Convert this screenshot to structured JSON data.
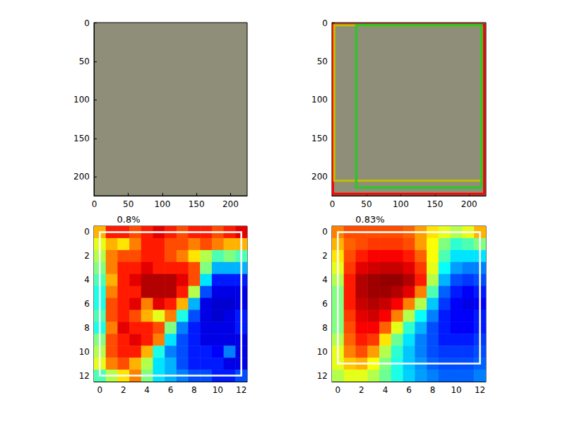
{
  "chart_data": [
    {
      "type": "image",
      "xlim": [
        -0.5,
        224.5
      ],
      "ylim": [
        224.5,
        -0.5
      ],
      "xticks": [
        0,
        50,
        100,
        150,
        200
      ],
      "yticks": [
        0,
        50,
        100,
        150,
        200
      ]
    },
    {
      "type": "image",
      "xlim": [
        -0.5,
        224.5
      ],
      "ylim": [
        224.5,
        -0.5
      ],
      "xticks": [
        0,
        50,
        100,
        150,
        200
      ],
      "yticks": [
        0,
        50,
        100,
        150,
        200
      ],
      "boxes": [
        {
          "color": "#ff0000",
          "coords": [
            1,
            2,
            222,
            222
          ]
        },
        {
          "color": "#bfbf00",
          "coords": [
            3,
            3,
            218,
            205
          ]
        },
        {
          "color": "#22cc22",
          "coords": [
            35,
            3,
            218,
            214
          ]
        }
      ]
    },
    {
      "type": "heatmap",
      "title": "0.8%",
      "xlim": [
        -0.5,
        12.5
      ],
      "ylim": [
        12.5,
        -0.5
      ],
      "xticks": [
        0,
        2,
        4,
        6,
        8,
        10,
        12
      ],
      "yticks": [
        0,
        2,
        4,
        6,
        8,
        10,
        12
      ],
      "zlim": [
        0,
        1
      ],
      "cells": [
        [
          0.7,
          0.85,
          0.85,
          0.8,
          0.85,
          0.9,
          0.85,
          0.8,
          0.85,
          0.85,
          0.8,
          0.85,
          0.9
        ],
        [
          0.6,
          0.7,
          0.65,
          0.75,
          0.85,
          0.85,
          0.8,
          0.8,
          0.75,
          0.8,
          0.75,
          0.7,
          0.7
        ],
        [
          0.55,
          0.75,
          0.8,
          0.8,
          0.85,
          0.85,
          0.8,
          0.75,
          0.65,
          0.55,
          0.45,
          0.5,
          0.45
        ],
        [
          0.5,
          0.75,
          0.85,
          0.85,
          0.9,
          0.85,
          0.85,
          0.85,
          0.8,
          0.5,
          0.3,
          0.3,
          0.3
        ],
        [
          0.45,
          0.7,
          0.85,
          0.9,
          0.95,
          0.95,
          0.95,
          0.9,
          0.8,
          0.35,
          0.15,
          0.15,
          0.15
        ],
        [
          0.4,
          0.75,
          0.85,
          0.85,
          0.95,
          0.95,
          0.95,
          0.85,
          0.55,
          0.2,
          0.1,
          0.1,
          0.1
        ],
        [
          0.4,
          0.8,
          0.85,
          0.9,
          0.75,
          0.9,
          0.85,
          0.7,
          0.3,
          0.1,
          0.08,
          0.08,
          0.1
        ],
        [
          0.45,
          0.8,
          0.85,
          0.8,
          0.7,
          0.6,
          0.75,
          0.4,
          0.2,
          0.1,
          0.08,
          0.1,
          0.15
        ],
        [
          0.4,
          0.75,
          0.9,
          0.85,
          0.85,
          0.8,
          0.5,
          0.25,
          0.15,
          0.1,
          0.1,
          0.1,
          0.15
        ],
        [
          0.5,
          0.8,
          0.85,
          0.9,
          0.85,
          0.75,
          0.35,
          0.2,
          0.15,
          0.1,
          0.1,
          0.1,
          0.1
        ],
        [
          0.55,
          0.8,
          0.85,
          0.85,
          0.7,
          0.4,
          0.25,
          0.2,
          0.15,
          0.15,
          0.12,
          0.25,
          0.1
        ],
        [
          0.6,
          0.75,
          0.8,
          0.7,
          0.55,
          0.35,
          0.3,
          0.2,
          0.15,
          0.15,
          0.15,
          0.1,
          0.1
        ],
        [
          0.45,
          0.55,
          0.65,
          0.75,
          0.5,
          0.35,
          0.3,
          0.25,
          0.2,
          0.2,
          0.15,
          0.15,
          0.2
        ]
      ],
      "boxes": [
        {
          "color": "#ffffff",
          "coords": [
            0,
            0,
            12,
            12
          ]
        }
      ]
    },
    {
      "type": "heatmap",
      "title": "0.83%",
      "xlim": [
        -0.5,
        12.5
      ],
      "ylim": [
        12.5,
        -0.5
      ],
      "xticks": [
        0,
        2,
        4,
        6,
        8,
        10,
        12
      ],
      "yticks": [
        0,
        2,
        4,
        6,
        8,
        10,
        12
      ],
      "zlim": [
        0,
        1
      ],
      "cells": [
        [
          0.75,
          0.8,
          0.8,
          0.8,
          0.8,
          0.8,
          0.78,
          0.72,
          0.65,
          0.6,
          0.55,
          0.6,
          0.7
        ],
        [
          0.7,
          0.78,
          0.8,
          0.82,
          0.82,
          0.82,
          0.8,
          0.72,
          0.62,
          0.5,
          0.42,
          0.45,
          0.5
        ],
        [
          0.65,
          0.8,
          0.85,
          0.88,
          0.88,
          0.88,
          0.85,
          0.78,
          0.62,
          0.45,
          0.35,
          0.35,
          0.35
        ],
        [
          0.6,
          0.82,
          0.9,
          0.92,
          0.93,
          0.93,
          0.9,
          0.82,
          0.6,
          0.38,
          0.28,
          0.25,
          0.25
        ],
        [
          0.55,
          0.85,
          0.95,
          0.97,
          0.98,
          0.98,
          0.95,
          0.85,
          0.55,
          0.3,
          0.2,
          0.18,
          0.2
        ],
        [
          0.5,
          0.85,
          0.95,
          0.97,
          0.97,
          0.95,
          0.9,
          0.75,
          0.45,
          0.22,
          0.15,
          0.12,
          0.15
        ],
        [
          0.5,
          0.85,
          0.93,
          0.95,
          0.93,
          0.88,
          0.75,
          0.55,
          0.32,
          0.18,
          0.12,
          0.1,
          0.12
        ],
        [
          0.5,
          0.82,
          0.9,
          0.92,
          0.88,
          0.75,
          0.55,
          0.38,
          0.25,
          0.15,
          0.12,
          0.12,
          0.15
        ],
        [
          0.5,
          0.8,
          0.88,
          0.88,
          0.78,
          0.6,
          0.42,
          0.3,
          0.2,
          0.15,
          0.12,
          0.12,
          0.15
        ],
        [
          0.55,
          0.78,
          0.85,
          0.82,
          0.65,
          0.48,
          0.35,
          0.25,
          0.2,
          0.15,
          0.15,
          0.15,
          0.18
        ],
        [
          0.6,
          0.75,
          0.8,
          0.72,
          0.55,
          0.42,
          0.32,
          0.25,
          0.2,
          0.18,
          0.18,
          0.18,
          0.2
        ],
        [
          0.6,
          0.68,
          0.7,
          0.62,
          0.5,
          0.4,
          0.32,
          0.27,
          0.22,
          0.2,
          0.2,
          0.2,
          0.22
        ],
        [
          0.55,
          0.6,
          0.6,
          0.55,
          0.48,
          0.4,
          0.33,
          0.28,
          0.25,
          0.22,
          0.22,
          0.22,
          0.25
        ]
      ],
      "boxes": [
        {
          "color": "#ffffff",
          "coords": [
            0,
            0,
            12,
            11
          ]
        }
      ]
    }
  ]
}
